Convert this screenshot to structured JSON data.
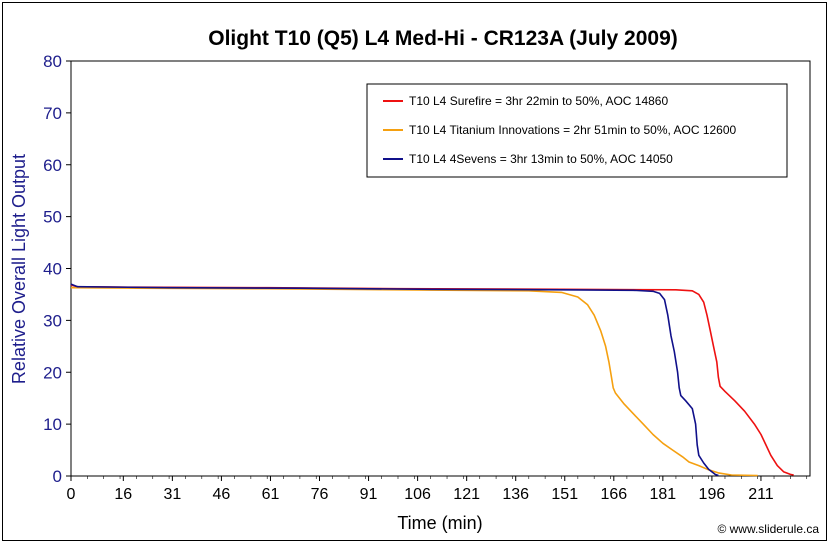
{
  "chart_data": {
    "type": "line",
    "title": "Olight T10 (Q5) L4 Med-Hi - CR123A (July 2009)",
    "xlabel": "Time (min)",
    "ylabel": "Relative Overall Light Output",
    "xlim": [
      0,
      226
    ],
    "ylim": [
      0,
      80
    ],
    "x_ticks": [
      "0",
      "16",
      "31",
      "46",
      "61",
      "76",
      "91",
      "106",
      "121",
      "136",
      "151",
      "166",
      "181",
      "196",
      "211"
    ],
    "y_ticks": [
      "0",
      "10",
      "20",
      "30",
      "40",
      "50",
      "60",
      "70",
      "80"
    ],
    "grid": false,
    "legend_position": "top-right",
    "credit": "© www.sliderule.ca",
    "series": [
      {
        "name": "T10 L4 Surefire = 3hr 22min to 50%, AOC 14860",
        "color": "#ee1111",
        "points": [
          [
            0,
            36.8
          ],
          [
            2,
            36.5
          ],
          [
            20,
            36.4
          ],
          [
            60,
            36.3
          ],
          [
            100,
            36.1
          ],
          [
            150,
            36.0
          ],
          [
            185,
            35.9
          ],
          [
            190,
            35.7
          ],
          [
            192,
            35.0
          ],
          [
            193.5,
            33.5
          ],
          [
            194.5,
            31
          ],
          [
            195.5,
            28
          ],
          [
            196.5,
            25
          ],
          [
            197.5,
            22
          ],
          [
            198,
            19
          ],
          [
            198.5,
            17.3
          ],
          [
            200,
            16.3
          ],
          [
            203,
            14.5
          ],
          [
            206,
            12.5
          ],
          [
            209,
            10
          ],
          [
            211,
            8
          ],
          [
            212.5,
            6
          ],
          [
            214,
            4
          ],
          [
            216,
            2
          ],
          [
            218,
            0.8
          ],
          [
            220,
            0.3
          ],
          [
            221,
            0.2
          ]
        ]
      },
      {
        "name": "T10 L4 Titanium Innovations = 2hr 51min to 50%, AOC 12600",
        "color": "#f5a010",
        "points": [
          [
            0,
            36.3
          ],
          [
            20,
            36.2
          ],
          [
            60,
            36.1
          ],
          [
            100,
            35.9
          ],
          [
            140,
            35.7
          ],
          [
            150,
            35.4
          ],
          [
            155,
            34.5
          ],
          [
            158,
            33
          ],
          [
            160,
            31
          ],
          [
            162,
            28
          ],
          [
            163.5,
            25
          ],
          [
            164.5,
            22
          ],
          [
            165.3,
            19
          ],
          [
            165.8,
            17
          ],
          [
            166.5,
            16
          ],
          [
            169,
            14
          ],
          [
            172,
            12
          ],
          [
            175,
            10
          ],
          [
            178,
            8
          ],
          [
            181,
            6.3
          ],
          [
            184,
            5
          ],
          [
            187,
            3.7
          ],
          [
            189,
            2.7
          ],
          [
            192,
            2
          ],
          [
            195,
            1.2
          ],
          [
            198,
            0.6
          ],
          [
            202,
            0.2
          ],
          [
            210,
            0.1
          ]
        ]
      },
      {
        "name": "T10 L4 4Sevens = 3hr 13min to 50%, AOC 14050",
        "color": "#10108a",
        "points": [
          [
            0,
            37
          ],
          [
            2,
            36.5
          ],
          [
            30,
            36.3
          ],
          [
            70,
            36.2
          ],
          [
            110,
            36.0
          ],
          [
            150,
            35.9
          ],
          [
            172,
            35.8
          ],
          [
            178,
            35.6
          ],
          [
            180,
            35.2
          ],
          [
            181.5,
            34
          ],
          [
            182.5,
            31
          ],
          [
            183.5,
            27
          ],
          [
            184.5,
            24
          ],
          [
            185.5,
            20
          ],
          [
            186,
            17
          ],
          [
            186.5,
            15.5
          ],
          [
            188,
            14.5
          ],
          [
            190,
            13
          ],
          [
            191,
            10
          ],
          [
            191.5,
            6
          ],
          [
            192,
            4
          ],
          [
            193.5,
            2.5
          ],
          [
            195,
            1.3
          ],
          [
            197,
            0.3
          ],
          [
            198,
            0.1
          ]
        ]
      }
    ]
  }
}
